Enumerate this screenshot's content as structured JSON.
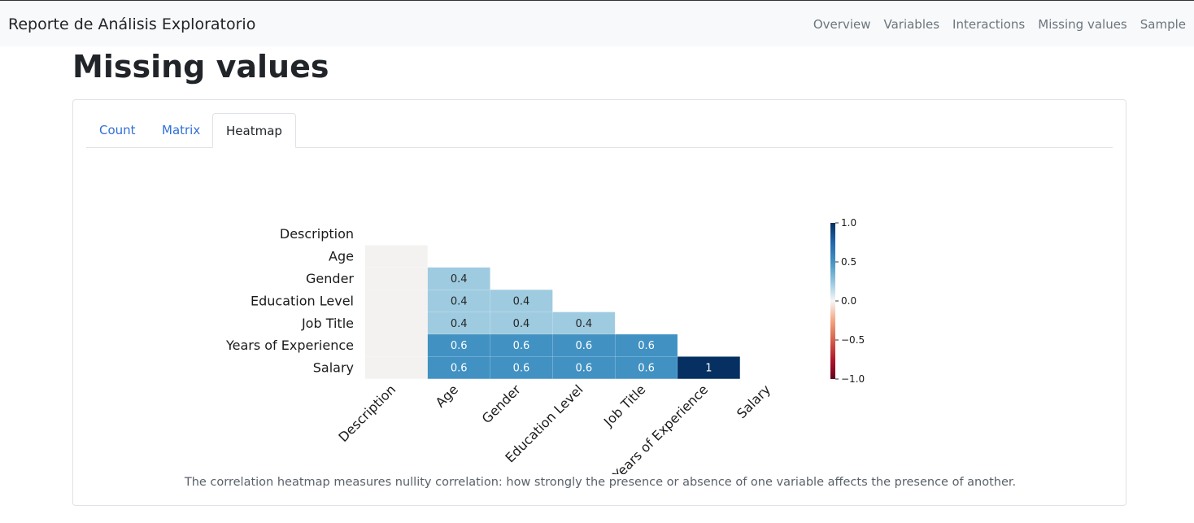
{
  "app": {
    "title": "Reporte de Análisis Exploratorio"
  },
  "nav": [
    {
      "label": "Overview"
    },
    {
      "label": "Variables"
    },
    {
      "label": "Interactions"
    },
    {
      "label": "Missing values"
    },
    {
      "label": "Sample"
    }
  ],
  "page": {
    "title": "Missing values"
  },
  "tabs": [
    {
      "label": "Count",
      "active": false
    },
    {
      "label": "Matrix",
      "active": false
    },
    {
      "label": "Heatmap",
      "active": true
    }
  ],
  "chart_data": {
    "type": "heatmap",
    "variables": [
      "Description",
      "Age",
      "Gender",
      "Education Level",
      "Job Title",
      "Years of Experience",
      "Salary"
    ],
    "matrix": [
      [
        null,
        null,
        null,
        null,
        null,
        null,
        null
      ],
      [
        0,
        null,
        null,
        null,
        null,
        null,
        null
      ],
      [
        0,
        0.4,
        null,
        null,
        null,
        null,
        null
      ],
      [
        0,
        0.4,
        0.4,
        null,
        null,
        null,
        null
      ],
      [
        0,
        0.4,
        0.4,
        0.4,
        null,
        null,
        null
      ],
      [
        0,
        0.6,
        0.6,
        0.6,
        0.6,
        null,
        null
      ],
      [
        0,
        0.6,
        0.6,
        0.6,
        0.6,
        1,
        null
      ]
    ],
    "cell_labels": [
      [
        null,
        null,
        null,
        null,
        null,
        null,
        null
      ],
      [
        null,
        null,
        null,
        null,
        null,
        null,
        null
      ],
      [
        null,
        "0.4",
        null,
        null,
        null,
        null,
        null
      ],
      [
        null,
        "0.4",
        "0.4",
        null,
        null,
        null,
        null
      ],
      [
        null,
        "0.4",
        "0.4",
        "0.4",
        null,
        null,
        null
      ],
      [
        null,
        "0.6",
        "0.6",
        "0.6",
        "0.6",
        null,
        null
      ],
      [
        null,
        "0.6",
        "0.6",
        "0.6",
        "0.6",
        "1",
        null
      ]
    ],
    "colorbar": {
      "range": [
        -1.0,
        1.0
      ],
      "ticks": [
        1.0,
        0.5,
        0.0,
        -0.5,
        -1.0
      ],
      "tick_labels": [
        "1.0",
        "0.5",
        "0.0",
        "−0.5",
        "−1.0"
      ],
      "colormap": "RdBu"
    },
    "colors": {
      "zero": "#f4f2f0",
      "v04": "#9ecbe0",
      "v06": "#4191c3",
      "v1": "#053061"
    }
  },
  "caption": "The correlation heatmap measures nullity correlation: how strongly the presence or absence of one variable affects the presence of another."
}
